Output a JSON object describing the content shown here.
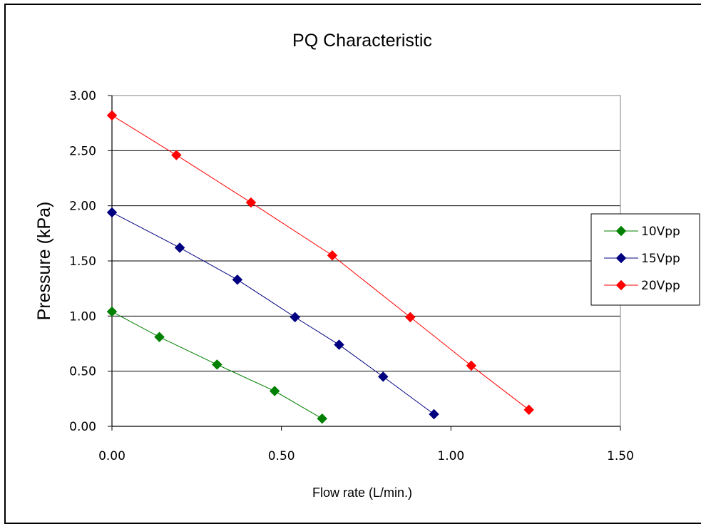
{
  "chart_data": {
    "type": "line",
    "title": "PQ Characteristic",
    "xlabel": "Flow rate (L/min.)",
    "ylabel": "Pressure (kPa)",
    "xlim": [
      0,
      1.5
    ],
    "ylim": [
      0,
      3
    ],
    "xticks": [
      "0.00",
      "0.50",
      "1.00",
      "1.50"
    ],
    "yticks": [
      "0.00",
      "0.50",
      "1.00",
      "1.50",
      "2.00",
      "2.50",
      "3.00"
    ],
    "grid": "horizontal",
    "legend_position": "right",
    "series": [
      {
        "name": "10Vpp",
        "color": "#008000",
        "marker": "diamond",
        "x": [
          0.0,
          0.14,
          0.31,
          0.48,
          0.62
        ],
        "y": [
          1.04,
          0.81,
          0.56,
          0.32,
          0.07
        ]
      },
      {
        "name": "15Vpp",
        "color": "#000080",
        "marker": "diamond",
        "x": [
          0.0,
          0.2,
          0.37,
          0.54,
          0.67,
          0.8,
          0.95
        ],
        "y": [
          1.94,
          1.62,
          1.33,
          0.99,
          0.74,
          0.45,
          0.11
        ]
      },
      {
        "name": "20Vpp",
        "color": "#ff0000",
        "marker": "diamond",
        "x": [
          0.0,
          0.19,
          0.41,
          0.65,
          0.88,
          1.06,
          1.23
        ],
        "y": [
          2.82,
          2.46,
          2.03,
          1.55,
          0.99,
          0.55,
          0.15
        ]
      }
    ]
  }
}
